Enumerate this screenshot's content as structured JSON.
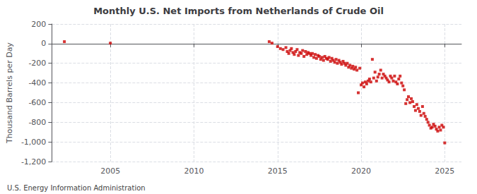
{
  "chart_data": {
    "type": "scatter",
    "title": "Monthly U.S. Net Imports from Netherlands of Crude Oil",
    "ylabel": "Thousand Barrels per Day",
    "annotations": [
      "U.S. Energy Information Administration"
    ],
    "color": "#cc0000",
    "marker": "square",
    "grid": true,
    "xlim": [
      2001.5,
      2026.0
    ],
    "xticks": [
      2005,
      2010,
      2015,
      2020,
      2025
    ],
    "ylim": [
      -1200,
      200
    ],
    "yticks": [
      200,
      0,
      -200,
      -400,
      -600,
      -800,
      {
        "value": -1000,
        "label": "-1,000"
      },
      {
        "value": -1200,
        "label": "-1,200"
      }
    ],
    "x": [
      2002.25,
      2005.0,
      2014.5,
      2014.67,
      2015.0,
      2015.17,
      2015.33,
      2015.5,
      2015.58,
      2015.67,
      2015.75,
      2015.83,
      2015.92,
      2016.0,
      2016.08,
      2016.17,
      2016.25,
      2016.33,
      2016.42,
      2016.5,
      2016.58,
      2016.67,
      2016.75,
      2016.83,
      2016.92,
      2017.0,
      2017.08,
      2017.17,
      2017.25,
      2017.33,
      2017.42,
      2017.5,
      2017.58,
      2017.67,
      2017.75,
      2017.83,
      2017.92,
      2018.0,
      2018.08,
      2018.17,
      2018.25,
      2018.33,
      2018.42,
      2018.5,
      2018.58,
      2018.67,
      2018.75,
      2018.83,
      2018.92,
      2019.0,
      2019.08,
      2019.17,
      2019.25,
      2019.33,
      2019.42,
      2019.5,
      2019.58,
      2019.67,
      2019.75,
      2019.83,
      2019.92,
      2020.0,
      2020.08,
      2020.17,
      2020.25,
      2020.33,
      2020.42,
      2020.5,
      2020.58,
      2020.67,
      2020.75,
      2020.83,
      2020.92,
      2021.0,
      2021.08,
      2021.17,
      2021.25,
      2021.33,
      2021.42,
      2021.5,
      2021.58,
      2021.67,
      2021.75,
      2021.83,
      2021.92,
      2022.0,
      2022.08,
      2022.17,
      2022.25,
      2022.33,
      2022.42,
      2022.5,
      2022.58,
      2022.67,
      2022.75,
      2022.83,
      2022.92,
      2023.0,
      2023.08,
      2023.17,
      2023.25,
      2023.33,
      2023.42,
      2023.5,
      2023.58,
      2023.67,
      2023.75,
      2023.83,
      2023.92,
      2024.0,
      2024.08,
      2024.17,
      2024.25,
      2024.33,
      2024.42,
      2024.5,
      2024.58,
      2024.67,
      2024.75,
      2024.83,
      2024.92,
      2025.0
    ],
    "values": [
      20,
      5,
      20,
      5,
      -30,
      -50,
      -60,
      -40,
      -80,
      -100,
      -70,
      -50,
      -90,
      -110,
      -80,
      -60,
      -120,
      -90,
      -100,
      -70,
      -130,
      -80,
      -110,
      -90,
      -100,
      -120,
      -100,
      -140,
      -110,
      -150,
      -120,
      -130,
      -160,
      -140,
      -170,
      -130,
      -150,
      -160,
      -140,
      -180,
      -150,
      -170,
      -190,
      -160,
      -200,
      -170,
      -190,
      -210,
      -180,
      -200,
      -220,
      -200,
      -240,
      -220,
      -250,
      -230,
      -260,
      -240,
      -270,
      -500,
      -250,
      -420,
      -400,
      -440,
      -390,
      -410,
      -380,
      -360,
      -390,
      -160,
      -350,
      -290,
      -380,
      -340,
      -310,
      -270,
      -350,
      -310,
      -330,
      -350,
      -370,
      -390,
      -330,
      -350,
      -380,
      -330,
      -390,
      -410,
      -360,
      -330,
      -400,
      -430,
      -470,
      -610,
      -570,
      -540,
      -600,
      -560,
      -590,
      -640,
      -680,
      -620,
      -660,
      -690,
      -730,
      -640,
      -710,
      -740,
      -770,
      -800,
      -830,
      -860,
      -850,
      -820,
      -840,
      -870,
      -890,
      -850,
      -880,
      -830,
      -850,
      -1010
    ]
  }
}
